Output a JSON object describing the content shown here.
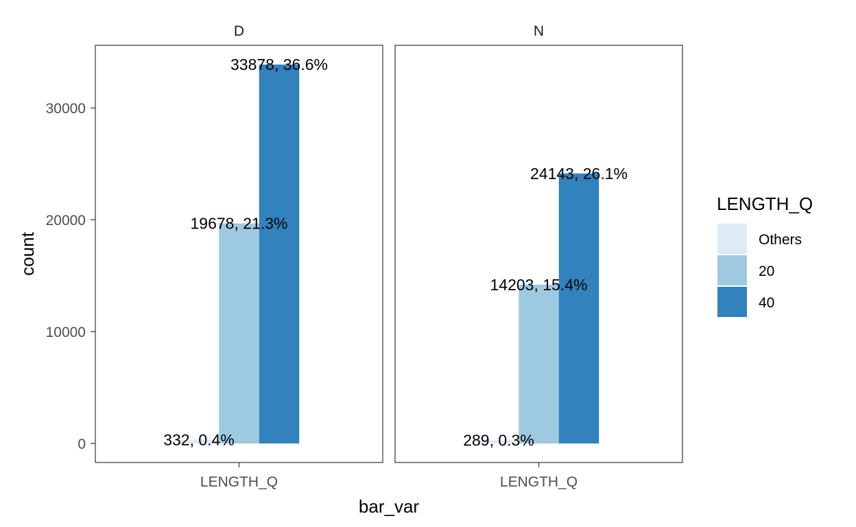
{
  "chart_data": {
    "type": "bar",
    "xlabel": "bar_var",
    "ylabel": "count",
    "ylim": [
      -1700,
      35600
    ],
    "y_ticks": [
      0,
      10000,
      20000,
      30000
    ],
    "y_tick_labels": [
      "0",
      "10000",
      "20000",
      "30000"
    ],
    "grid": false,
    "legend": {
      "title": "LENGTH_Q",
      "placement": "right",
      "entries": [
        {
          "name": "Others",
          "color": "#deebf7"
        },
        {
          "name": "20",
          "color": "#9ecae1"
        },
        {
          "name": "40",
          "color": "#3182bd"
        }
      ]
    },
    "series_colors": [
      "#deebf7",
      "#9ecae1",
      "#3182bd"
    ],
    "panels": [
      {
        "facet": "D",
        "x_category": "LENGTH_Q",
        "bars": [
          {
            "series": "Others",
            "value": 332,
            "label": "332, 0.4%"
          },
          {
            "series": "20",
            "value": 19678,
            "label": "19678, 21.3%"
          },
          {
            "series": "40",
            "value": 33878,
            "label": "33878, 36.6%"
          }
        ]
      },
      {
        "facet": "N",
        "x_category": "LENGTH_Q",
        "bars": [
          {
            "series": "Others",
            "value": 289,
            "label": "289, 0.3%"
          },
          {
            "series": "20",
            "value": 14203,
            "label": "14203, 15.4%"
          },
          {
            "series": "40",
            "value": 24143,
            "label": "24143, 26.1%"
          }
        ]
      }
    ]
  }
}
